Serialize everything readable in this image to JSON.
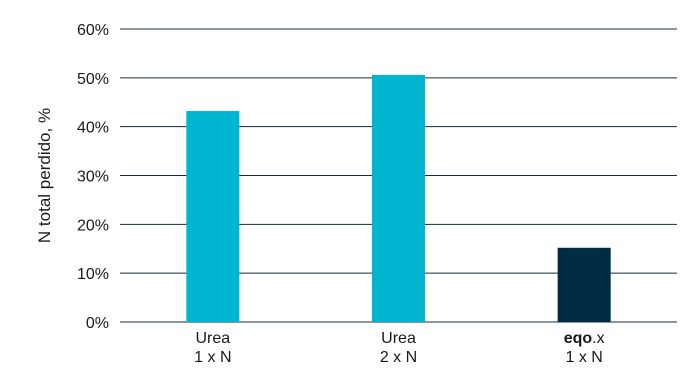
{
  "chart_data": {
    "type": "bar",
    "title": "",
    "xlabel": "",
    "ylabel": "N total perdido, %",
    "ylim": [
      0,
      60
    ],
    "yticks": [
      0,
      10,
      20,
      30,
      40,
      50,
      60
    ],
    "ytick_labels": [
      "0%",
      "10%",
      "20%",
      "30%",
      "40%",
      "50%",
      "60%"
    ],
    "grid": true,
    "legend": "none",
    "categories": [
      {
        "line1_bold": "",
        "line1": "Urea",
        "line2": "1 x N"
      },
      {
        "line1_bold": "",
        "line1": "Urea",
        "line2": "2 x N"
      },
      {
        "line1_bold": "eqo",
        "line1": ".x",
        "line2": "1 x N"
      }
    ],
    "values": [
      43.2,
      50.6,
      15.2
    ],
    "colors": [
      "#00b5cf",
      "#00b5cf",
      "#002b45"
    ]
  }
}
